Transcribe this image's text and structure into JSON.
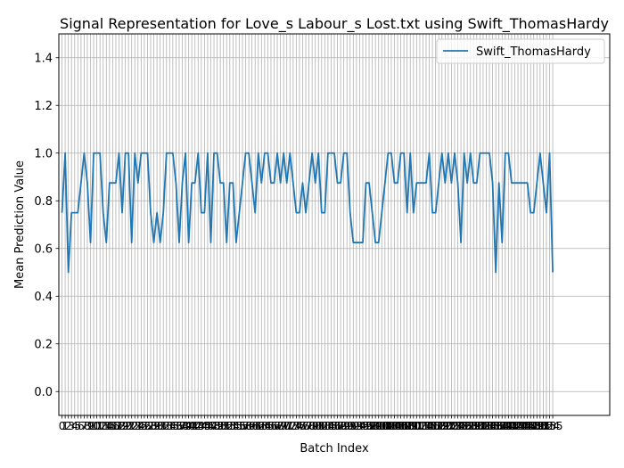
{
  "chart_data": {
    "type": "line",
    "title": "Signal Representation for Love_s Labour_s Lost.txt using Swift_ThomasHardy",
    "xlabel": "Batch Index",
    "ylabel": "Mean Prediction Value",
    "xlim": [
      -1,
      173
    ],
    "ylim": [
      -0.1,
      1.5
    ],
    "yticks": [
      0.0,
      0.2,
      0.4,
      0.6,
      0.8,
      1.0,
      1.2,
      1.4
    ],
    "ytick_labels": [
      "0.0",
      "0.2",
      "0.4",
      "0.6",
      "0.8",
      "1.0",
      "1.2",
      "1.4"
    ],
    "grid": true,
    "legend": "top-right",
    "series": [
      {
        "name": "Swift_ThomasHardy",
        "color": "#1f77b4",
        "values": [
          0.75,
          1.0,
          0.5,
          0.75,
          0.75,
          0.75,
          0.875,
          1.0,
          0.875,
          0.625,
          1.0,
          1.0,
          1.0,
          0.75,
          0.625,
          0.875,
          0.875,
          0.875,
          1.0,
          0.75,
          1.0,
          1.0,
          0.625,
          1.0,
          0.875,
          1.0,
          1.0,
          1.0,
          0.75,
          0.625,
          0.75,
          0.625,
          0.75,
          1.0,
          1.0,
          1.0,
          0.875,
          0.625,
          0.875,
          1.0,
          0.625,
          0.875,
          0.875,
          1.0,
          0.75,
          0.75,
          1.0,
          0.625,
          1.0,
          1.0,
          0.875,
          0.875,
          0.625,
          0.875,
          0.875,
          0.625,
          0.75,
          0.875,
          1.0,
          1.0,
          0.875,
          0.75,
          1.0,
          0.875,
          1.0,
          1.0,
          0.875,
          0.875,
          1.0,
          0.875,
          1.0,
          0.875,
          1.0,
          0.875,
          0.75,
          0.75,
          0.875,
          0.75,
          0.875,
          1.0,
          0.875,
          1.0,
          0.75,
          0.75,
          1.0,
          1.0,
          1.0,
          0.875,
          0.875,
          1.0,
          1.0,
          0.75,
          0.625,
          0.625,
          0.625,
          0.625,
          0.875,
          0.875,
          0.75,
          0.625,
          0.625,
          0.75,
          0.875,
          1.0,
          1.0,
          0.875,
          0.875,
          1.0,
          1.0,
          0.75,
          1.0,
          0.75,
          0.875,
          0.875,
          0.875,
          0.875,
          1.0,
          0.75,
          0.75,
          0.875,
          1.0,
          0.875,
          1.0,
          0.875,
          1.0,
          0.875,
          0.625,
          1.0,
          0.875,
          1.0,
          0.875,
          0.875,
          1.0,
          1.0,
          1.0,
          1.0,
          0.875,
          0.5,
          0.875,
          0.625,
          1.0,
          1.0,
          0.875,
          0.875,
          0.875,
          0.875,
          0.875,
          0.875,
          0.75,
          0.75,
          0.875,
          1.0,
          0.875,
          0.75,
          1.0,
          0.5
        ]
      }
    ]
  }
}
